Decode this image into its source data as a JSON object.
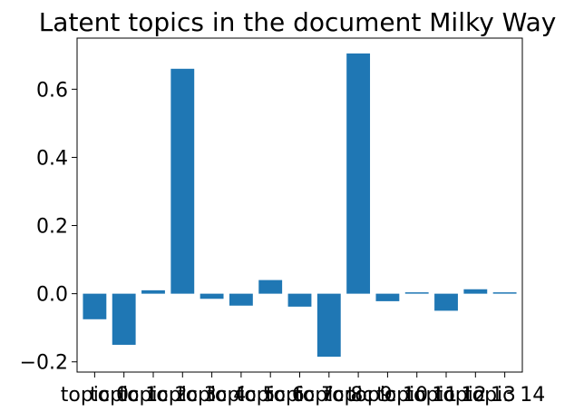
{
  "chart_data": {
    "type": "bar",
    "title": "Latent topics in the document Milky Way",
    "xlabel": "",
    "ylabel": "",
    "categories": [
      "topic 0",
      "topic 1",
      "topic 2",
      "topic 3",
      "topic 4",
      "topic 5",
      "topic 6",
      "topic 7",
      "topic 8",
      "topic 9",
      "topic 10",
      "topic 11",
      "topic 12",
      "topic 13",
      "topic 14"
    ],
    "values": [
      -0.075,
      -0.15,
      0.01,
      0.66,
      -0.015,
      -0.035,
      0.04,
      -0.038,
      -0.185,
      0.705,
      -0.022,
      0.004,
      -0.05,
      0.013,
      0.004
    ],
    "ylim": [
      -0.23,
      0.75
    ],
    "yticks": [
      -0.2,
      0.0,
      0.2,
      0.4,
      0.6
    ],
    "ytick_labels": [
      "−0.2",
      "0.0",
      "0.2",
      "0.4",
      "0.6"
    ],
    "bar_color": "#1f77b4",
    "grid": false,
    "legend": "none"
  }
}
